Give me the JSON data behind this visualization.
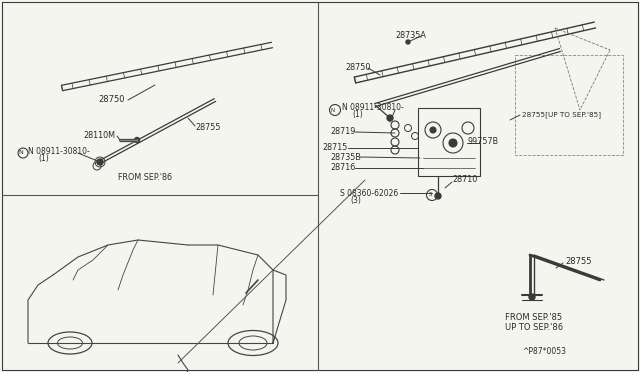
{
  "bg_color": "#f5f5f0",
  "line_color": "#3a3a3a",
  "text_color": "#2a2a2a",
  "divider_color": "#555555",
  "figsize": [
    6.4,
    3.72
  ],
  "dpi": 100,
  "labels": {
    "28750_tl": "28750",
    "28110M": "28110M",
    "N_08911_tl": "N 08911-30810-",
    "N_08911_tl2": "(1)",
    "28755_tl": "28755",
    "from_sep86": "FROM SEP.'86",
    "28735A": "28735A",
    "28750_tr": "28750",
    "N_08911_tr": "N 08911-30810-",
    "N_08911_tr2": "(1)",
    "28755_upto": "28755[UP TO SEP.'85]",
    "28719": "28719",
    "28715": "28715",
    "28735B": "28735B",
    "99757B": "99757B",
    "28716": "28716",
    "S_08360": "S 08360-62026",
    "S_08360_2": "(3)",
    "28710": "28710",
    "28755_br": "28755",
    "from_sep85": "FROM SEP.'85",
    "upto_sep86": "UP TO SEP.'86",
    "diag_code": "^P87*0053"
  }
}
